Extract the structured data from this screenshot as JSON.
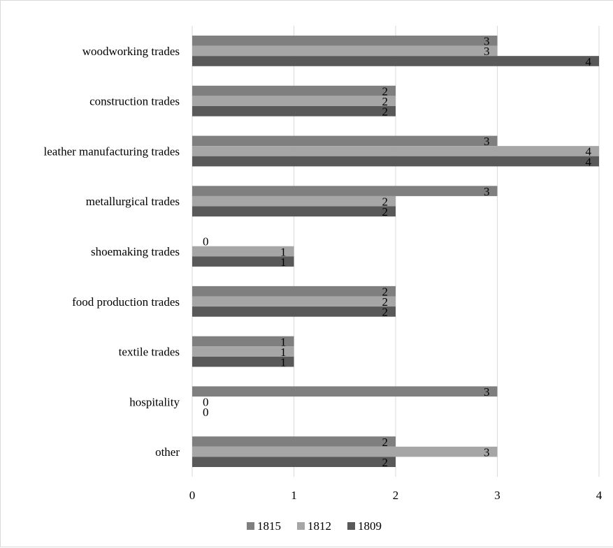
{
  "chart_data": {
    "type": "bar",
    "orientation": "horizontal",
    "categories": [
      "woodworking trades",
      "construction trades",
      "leather manufacturing trades",
      "metallurgical trades ",
      "shoemaking trades",
      "food production trades",
      "textile trades",
      "hospitality",
      "other"
    ],
    "series": [
      {
        "name": "1815",
        "color": "#7f7f7f",
        "values": [
          3,
          2,
          3,
          3,
          0,
          2,
          1,
          3,
          2
        ]
      },
      {
        "name": "1812",
        "color": "#a6a6a6",
        "values": [
          3,
          2,
          4,
          2,
          1,
          2,
          1,
          0,
          3
        ]
      },
      {
        "name": "1809",
        "color": "#595959",
        "values": [
          4,
          2,
          4,
          2,
          1,
          2,
          1,
          0,
          2
        ]
      }
    ],
    "xlim": [
      0,
      4
    ],
    "xticks": [
      "0",
      "1",
      "2",
      "3",
      "4"
    ],
    "grid": true,
    "legend_position": "bottom",
    "title": "",
    "xlabel": "",
    "ylabel": ""
  }
}
